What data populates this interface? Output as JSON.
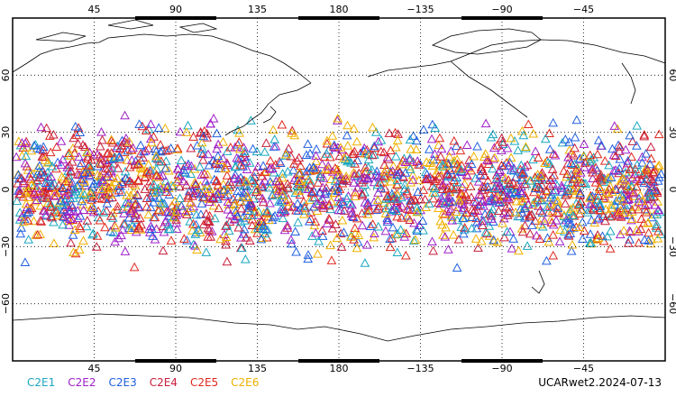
{
  "map": {
    "lon_ticks_top": [
      "45",
      "90",
      "135",
      "180",
      "−135",
      "−90",
      "−45"
    ],
    "lon_ticks_bottom": [
      "45",
      "90",
      "135",
      "180",
      "−135",
      "−90",
      "−45"
    ],
    "lat_ticks_left": [
      "60",
      "30",
      "0",
      "−30",
      "−60"
    ],
    "lat_ticks_right": [
      "60",
      "30",
      "0",
      "−30",
      "−60"
    ],
    "projection": "cylindrical equidistant, centered on 180°",
    "lon_range": [
      0,
      360
    ],
    "lat_range": [
      -90,
      90
    ],
    "grid": "dotted at 45° longitude and 30° latitude",
    "marker": "open triangle",
    "lat_band_of_markers": [
      -45,
      45
    ]
  },
  "legend": {
    "items": [
      {
        "label": "C2E1",
        "color": "#1aa7c0"
      },
      {
        "label": "C2E2",
        "color": "#a020c8"
      },
      {
        "label": "C2E3",
        "color": "#2060e0"
      },
      {
        "label": "C2E4",
        "color": "#c81e3c"
      },
      {
        "label": "C2E5",
        "color": "#e0281e"
      },
      {
        "label": "C2E6",
        "color": "#f0b000"
      }
    ]
  },
  "footer": {
    "stamp": "UCARwet2.2024-07-13"
  }
}
